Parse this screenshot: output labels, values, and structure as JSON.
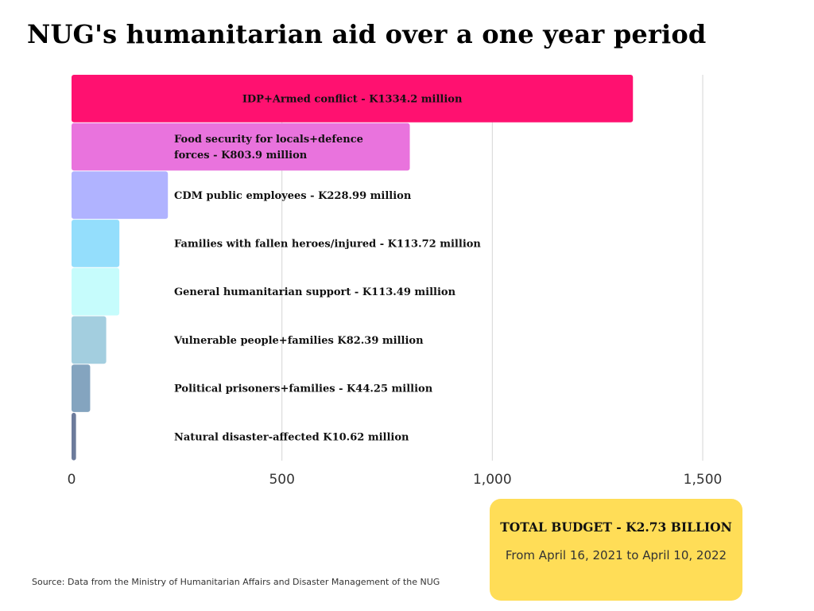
{
  "title": "NUG's humanitarian aid over a one year period",
  "chart_data": {
    "type": "bar",
    "orientation": "horizontal",
    "title": "NUG's humanitarian aid over a one year period",
    "xlabel": "",
    "ylabel": "",
    "xlim": [
      0,
      1500
    ],
    "xticks": [
      0,
      500,
      1000,
      1500
    ],
    "xtick_labels": [
      "0",
      "500",
      "1,000",
      "1,500"
    ],
    "grid": true,
    "categories": [
      "IDP+Armed conflict",
      "Food security for locals+defence forces",
      "CDM public employees",
      "Families with fallen heroes/injured",
      "General humanitarian support",
      "Vulnerable people+families",
      "Political prisoners+families",
      "Natural disaster-affected"
    ],
    "values": [
      1334.2,
      803.9,
      228.99,
      113.72,
      113.49,
      82.39,
      44.25,
      10.62
    ],
    "labels": [
      [
        "IDP+Armed conflict - K1334.2 million"
      ],
      [
        "Food security for locals+defence",
        "forces -  K803.9 million"
      ],
      [
        "CDM public employees - K228.99 million"
      ],
      [
        "Families with fallen heroes/injured - K113.72 million"
      ],
      [
        "General humanitarian support - K113.49 million"
      ],
      [
        "Vulnerable people+families K82.39 million"
      ],
      [
        "Political prisoners+families - K44.25 million"
      ],
      [
        "Natural disaster-affected K10.62 million"
      ]
    ],
    "colors": [
      "#ff1170",
      "#e973dd",
      "#b0b3ff",
      "#94defc",
      "#c6fcfc",
      "#a3cedf",
      "#84a4bf",
      "#6c7b9b"
    ]
  },
  "total_box": {
    "title": "TOTAL BUDGET - K2.73 BILLION",
    "subtitle": "From April 16, 2021 to April 10, 2022"
  },
  "source": "Source: Data from the Ministry of Humanitarian Affairs and Disaster Management of the NUG"
}
